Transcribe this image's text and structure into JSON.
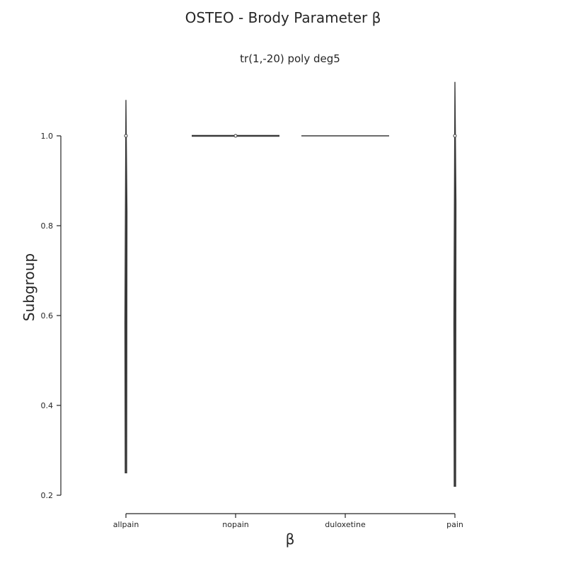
{
  "chart_data": {
    "type": "violin",
    "title": "OSTEO - Brody Parameter β",
    "subtitle": "tr(1,-20) poly deg5",
    "xlabel": "β",
    "ylabel": "Subgroup",
    "categories": [
      "allpain",
      "nopain",
      "duloxetine",
      "pain"
    ],
    "ylim": [
      0.2,
      1.0
    ],
    "yticks": [
      1.0,
      0.8,
      0.6,
      0.4,
      0.2
    ],
    "ytick_labels": [
      "1.0",
      "0.8",
      "0.6",
      "0.4",
      "0.2"
    ],
    "series": [
      {
        "category": "allpain",
        "min": 0.25,
        "max": 1.08,
        "median": 1.0,
        "max_halfwidth": 0.015
      },
      {
        "category": "nopain",
        "min": 1.0,
        "max": 1.0,
        "median": 1.0,
        "max_halfwidth": 0.4
      },
      {
        "category": "duloxetine",
        "min": 1.0,
        "max": 1.0,
        "median": null,
        "max_halfwidth": 0.4
      },
      {
        "category": "pain",
        "min": 0.22,
        "max": 1.12,
        "median": 1.0,
        "max_halfwidth": 0.015
      }
    ],
    "grid": false
  }
}
